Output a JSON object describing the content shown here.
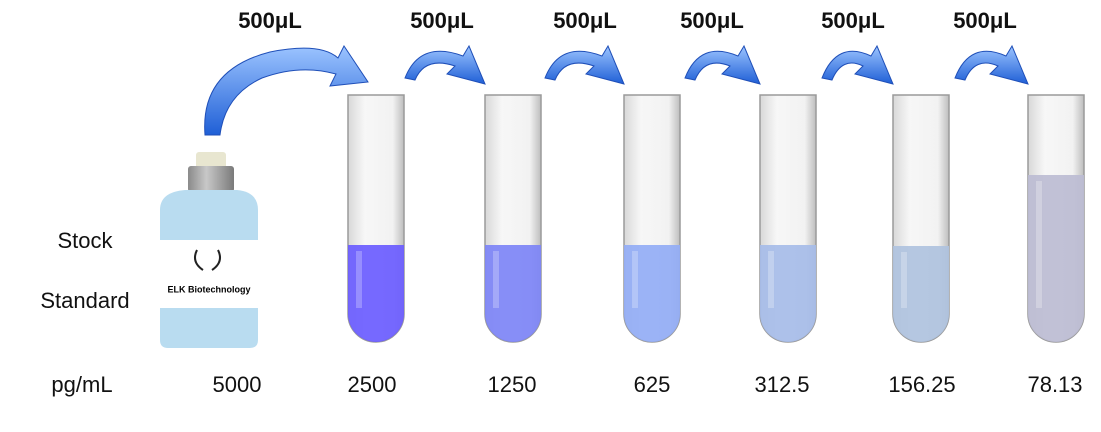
{
  "transfer_labels": [
    "500μL",
    "500μL",
    "500μL",
    "500μL",
    "500μL",
    "500μL"
  ],
  "stock_label": [
    "Stock",
    "Standard"
  ],
  "bottle_label": "ELK Biotechnology",
  "unit_label": "pg/mL",
  "concentrations": [
    "5000",
    "2500",
    "1250",
    "625",
    "312.5",
    "156.25",
    "78.13"
  ]
}
